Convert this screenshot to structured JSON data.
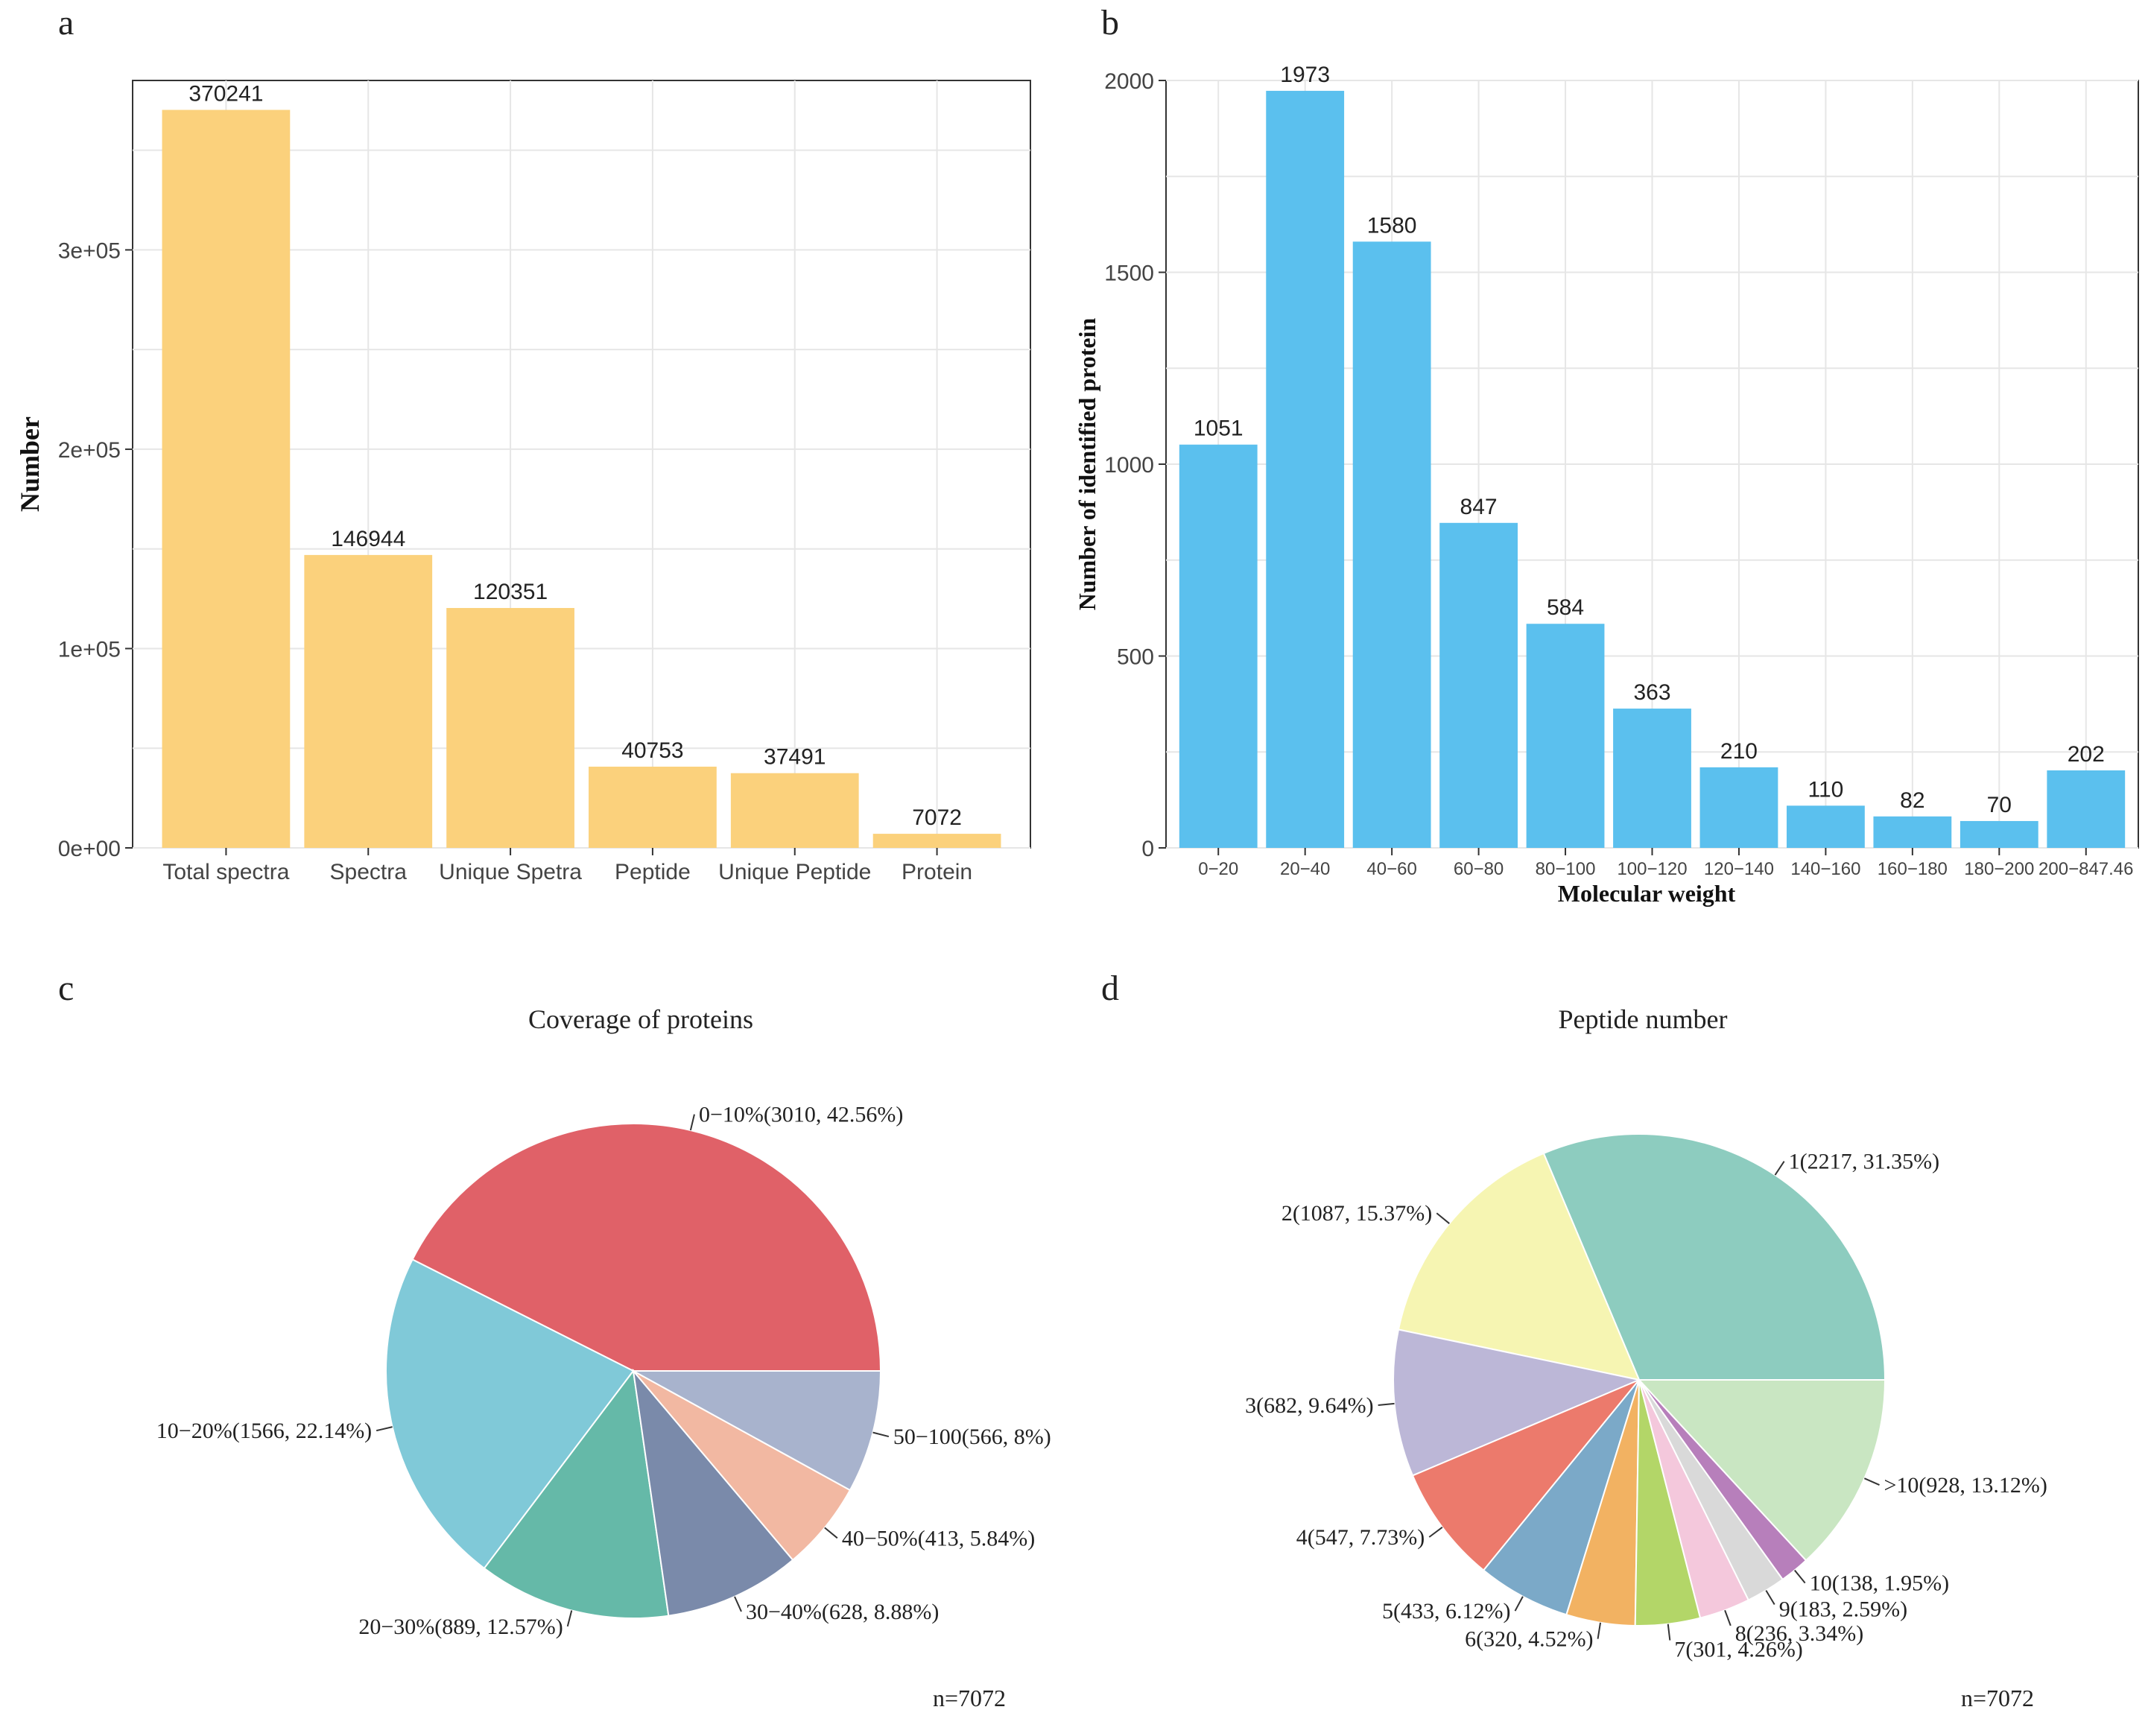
{
  "panel_labels": {
    "a": "a",
    "b": "b",
    "c": "c",
    "d": "d"
  },
  "colors": {
    "bar_a": "#FBD17C",
    "bar_b": "#5BC0EE",
    "grid": "#E6E6E6",
    "axis": "#333333"
  },
  "chart_data": [
    {
      "id": "a",
      "type": "bar",
      "title": "",
      "xlabel": "",
      "ylabel": "Number",
      "ylim": [
        0,
        385000
      ],
      "yticks": [
        0,
        100000,
        200000,
        300000
      ],
      "ytick_labels": [
        "0e+00",
        "1e+05",
        "2e+05",
        "3e+05"
      ],
      "categories": [
        "Total spectra",
        "Spectra",
        "Unique Spetra",
        "Peptide",
        "Unique Peptide",
        "Protein"
      ],
      "values": [
        370241,
        146944,
        120351,
        40753,
        37491,
        7072
      ],
      "data_labels": [
        "370241",
        "146944",
        "120351",
        "40753",
        "37491",
        "7072"
      ],
      "grid": true
    },
    {
      "id": "b",
      "type": "bar",
      "title": "",
      "xlabel": "Molecular weight",
      "ylabel": "Number of identified protein",
      "ylim": [
        0,
        2000
      ],
      "yticks": [
        0,
        500,
        1000,
        1500,
        2000
      ],
      "ytick_labels": [
        "0",
        "500",
        "1000",
        "1500",
        "2000"
      ],
      "categories": [
        "0−20",
        "20−40",
        "40−60",
        "60−80",
        "80−100",
        "100−120",
        "120−140",
        "140−160",
        "160−180",
        "180−200",
        "200−847.46"
      ],
      "values": [
        1051,
        1973,
        1580,
        847,
        584,
        363,
        210,
        110,
        82,
        70,
        202
      ],
      "data_labels": [
        "1051",
        "1973",
        "1580",
        "847",
        "584",
        "363",
        "210",
        "110",
        "82",
        "70",
        "202"
      ],
      "grid": true
    },
    {
      "id": "c",
      "type": "pie",
      "title": "Coverage of proteins",
      "note": "n=7072",
      "slices": [
        {
          "label": "0−10%(3010, 42.56%)",
          "value": 3010,
          "color": "#E06168"
        },
        {
          "label": "10−20%(1566, 22.14%)",
          "value": 1566,
          "color": "#80C9D8"
        },
        {
          "label": "20−30%(889, 12.57%)",
          "value": 889,
          "color": "#65B9A8"
        },
        {
          "label": "30−40%(628, 8.88%)",
          "value": 628,
          "color": "#7A8AAA"
        },
        {
          "label": "40−50%(413, 5.84%)",
          "value": 413,
          "color": "#F2B8A2"
        },
        {
          "label": "50−100(566, 8%)",
          "value": 566,
          "color": "#A8B3CD"
        }
      ]
    },
    {
      "id": "d",
      "type": "pie",
      "title": "Peptide number",
      "note": "n=7072",
      "slices": [
        {
          "label": "1(2217, 31.35%)",
          "value": 2217,
          "color": "#8DCCBF"
        },
        {
          "label": "2(1087, 15.37%)",
          "value": 1087,
          "color": "#F6F5B2"
        },
        {
          "label": "3(682, 9.64%)",
          "value": 682,
          "color": "#BCB7D7"
        },
        {
          "label": "4(547, 7.73%)",
          "value": 547,
          "color": "#EC7A6C"
        },
        {
          "label": "5(433, 6.12%)",
          "value": 433,
          "color": "#7BA9C8"
        },
        {
          "label": "6(320, 4.52%)",
          "value": 320,
          "color": "#F2B262"
        },
        {
          "label": "7(301, 4.26%)",
          "value": 301,
          "color": "#B3D668"
        },
        {
          "label": "8(236, 3.34%)",
          "value": 236,
          "color": "#F4C8DC"
        },
        {
          "label": "9(183, 2.59%)",
          "value": 183,
          "color": "#D9D9D9"
        },
        {
          "label": "10(138, 1.95%)",
          "value": 138,
          "color": "#B77FBB"
        },
        {
          "label": ">10(928, 13.12%)",
          "value": 928,
          "color": "#C9E6C2"
        }
      ]
    }
  ]
}
